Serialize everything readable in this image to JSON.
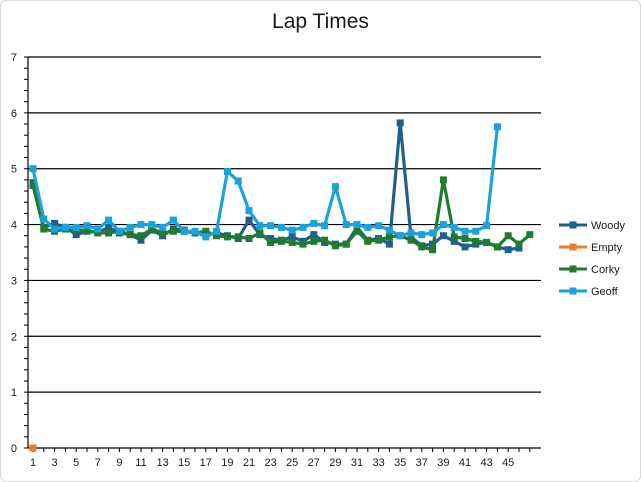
{
  "chart_data": {
    "type": "line",
    "title": "Lap Times",
    "xlabel": "",
    "ylabel": "",
    "ylim": [
      0,
      7
    ],
    "yticks": [
      "0",
      "1",
      "2",
      "3",
      "4",
      "5",
      "6",
      "7"
    ],
    "xtick_labels": [
      "1",
      "3",
      "5",
      "7",
      "9",
      "11",
      "13",
      "15",
      "17",
      "19",
      "21",
      "23",
      "25",
      "27",
      "29",
      "31",
      "33",
      "35",
      "37",
      "39",
      "41",
      "43",
      "45"
    ],
    "x": [
      1,
      2,
      3,
      4,
      5,
      6,
      7,
      8,
      9,
      10,
      11,
      12,
      13,
      14,
      15,
      16,
      17,
      18,
      19,
      20,
      21,
      22,
      23,
      24,
      25,
      26,
      27,
      28,
      29,
      30,
      31,
      32,
      33,
      34,
      35,
      36,
      37,
      38,
      39,
      40,
      41,
      42,
      43,
      44,
      45,
      46,
      47
    ],
    "legend_position": "right",
    "grid": "horizontal",
    "series": [
      {
        "name": "Woody",
        "color": "#1f5f8b",
        "values": [
          4.75,
          3.95,
          4.02,
          3.95,
          3.82,
          3.88,
          3.86,
          3.95,
          3.85,
          3.82,
          3.72,
          3.9,
          3.8,
          3.92,
          3.9,
          3.85,
          3.82,
          3.85,
          3.8,
          3.75,
          4.08,
          3.82,
          3.75,
          3.72,
          3.78,
          3.7,
          3.82,
          3.68,
          3.65,
          3.65,
          3.95,
          3.72,
          3.75,
          3.65,
          5.82,
          3.78,
          3.62,
          3.65,
          3.8,
          3.7,
          3.6,
          3.65,
          3.68,
          3.6,
          3.55,
          3.58,
          null
        ]
      },
      {
        "name": "Empty",
        "color": "#ed7d31",
        "values": [
          0,
          null,
          null,
          null,
          null,
          null,
          null,
          null,
          null,
          null,
          null,
          null,
          null,
          null,
          null,
          null,
          null,
          null,
          null,
          null,
          null,
          null,
          null,
          null,
          null,
          null,
          null,
          null,
          null,
          null,
          null,
          null,
          null,
          null,
          null,
          null,
          null,
          null,
          null,
          null,
          null,
          null,
          null,
          null,
          null,
          null,
          null
        ]
      },
      {
        "name": "Corky",
        "color": "#217a2e",
        "values": [
          4.7,
          3.92,
          3.88,
          3.92,
          3.9,
          3.9,
          3.85,
          3.85,
          3.88,
          3.82,
          3.8,
          3.92,
          3.85,
          3.88,
          3.88,
          3.85,
          3.88,
          3.8,
          3.78,
          3.78,
          3.75,
          3.85,
          3.68,
          3.7,
          3.68,
          3.65,
          3.7,
          3.72,
          3.62,
          3.65,
          3.88,
          3.7,
          3.72,
          3.78,
          3.8,
          3.72,
          3.6,
          3.55,
          4.8,
          3.78,
          3.75,
          3.7,
          3.68,
          3.6,
          3.8,
          3.65,
          3.82
        ]
      },
      {
        "name": "Geoff",
        "color": "#1ba1dc",
        "values": [
          5.0,
          4.1,
          3.92,
          3.95,
          3.95,
          3.98,
          3.92,
          4.08,
          3.88,
          3.95,
          4.0,
          4.0,
          3.95,
          4.08,
          3.88,
          3.88,
          3.78,
          3.88,
          4.95,
          4.78,
          4.25,
          3.98,
          3.98,
          3.95,
          3.9,
          3.95,
          4.02,
          3.98,
          4.68,
          4.0,
          4.0,
          3.95,
          3.98,
          3.9,
          3.8,
          3.85,
          3.82,
          3.85,
          4.0,
          3.95,
          3.88,
          3.88,
          3.98,
          5.75,
          null,
          null,
          null
        ]
      }
    ]
  }
}
